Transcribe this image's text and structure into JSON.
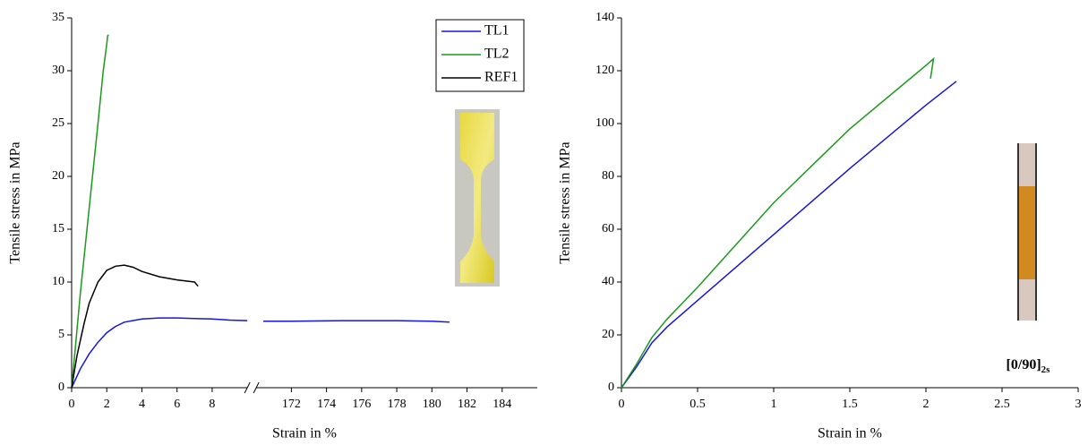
{
  "chart_data": [
    {
      "type": "line",
      "x_label": "Strain in %",
      "y_label": "Tensile stress in MPa",
      "xlim": [
        [
          0,
          10
        ],
        [
          170,
          186
        ]
      ],
      "xticks": [
        0,
        2,
        4,
        6,
        8,
        172,
        174,
        176,
        178,
        180,
        182,
        184
      ],
      "ylim": [
        0,
        35
      ],
      "yticks": [
        0,
        5,
        10,
        15,
        20,
        25,
        30,
        35
      ],
      "legend": "top-right",
      "series": [
        {
          "name": "TL1",
          "color": "#1515e0",
          "x": [
            0,
            0.5,
            1,
            1.5,
            2,
            2.5,
            3,
            4,
            5,
            6,
            7,
            8,
            9,
            10,
            null,
            170.4,
            172,
            175,
            178,
            180,
            181
          ],
          "values": [
            0,
            1.8,
            3.2,
            4.3,
            5.2,
            5.8,
            6.2,
            6.5,
            6.6,
            6.6,
            6.55,
            6.5,
            6.4,
            6.35,
            null,
            6.3,
            6.3,
            6.35,
            6.35,
            6.3,
            6.2
          ]
        },
        {
          "name": "TL2",
          "color": "#1a9a1a",
          "x": [
            0,
            0.5,
            1,
            1.5,
            1.8,
            2,
            2.05,
            2.1
          ],
          "values": [
            0,
            9,
            17,
            25,
            30,
            32.5,
            33.3,
            33.4
          ]
        },
        {
          "name": "REF1",
          "color": "#000000",
          "x": [
            0,
            0.3,
            0.7,
            1,
            1.5,
            2,
            2.5,
            3,
            3.5,
            4,
            5,
            6,
            7,
            7.2
          ],
          "values": [
            0,
            3,
            6,
            8,
            10,
            11.1,
            11.5,
            11.6,
            11.4,
            11,
            10.5,
            10.2,
            10,
            9.6
          ]
        }
      ]
    },
    {
      "type": "line",
      "x_label": "Strain in %",
      "y_label": "Tensile stress in MPa",
      "xlim": [
        0,
        3
      ],
      "xticks": [
        0,
        0.5,
        1,
        1.5,
        2,
        2.5,
        3
      ],
      "ylim": [
        0,
        140
      ],
      "yticks": [
        0,
        20,
        40,
        60,
        80,
        100,
        120,
        140
      ],
      "annotation": "[0/90]",
      "annotation_subscript": "2s",
      "series": [
        {
          "color": "#1515e0",
          "x": [
            0,
            0.1,
            0.2,
            0.3,
            0.5,
            1,
            1.5,
            2,
            2.2
          ],
          "values": [
            0,
            8,
            17,
            23,
            33,
            58,
            83,
            107,
            116
          ]
        },
        {
          "color": "#1a9a1a",
          "x": [
            0,
            0.1,
            0.2,
            0.3,
            0.5,
            1,
            1.5,
            2,
            2.05,
            2.03
          ],
          "values": [
            0,
            9,
            19,
            26,
            38,
            70,
            98,
            122,
            124.5,
            117
          ]
        }
      ]
    }
  ]
}
